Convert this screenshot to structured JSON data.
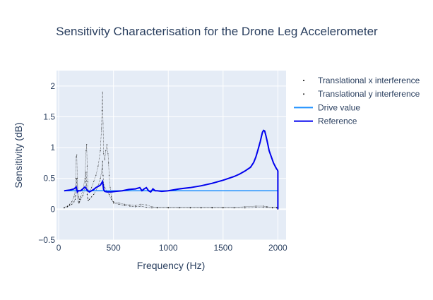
{
  "colors": {
    "background": "#ffffff",
    "plot_background": "#e5ecf6",
    "grid": "#ffffff",
    "text": "#2a3f5f",
    "x_interference": "#000000",
    "y_interference": "#1f1f1f",
    "drive_value": "#1e90ff",
    "reference": "#0000ee"
  },
  "chart_data": {
    "type": "line",
    "title": "Sensitivity Characterisation for the Drone Leg Accelerometer",
    "xlabel": "Frequency (Hz)",
    "ylabel": "Sensitivity (dB)",
    "xlim": [
      -20,
      2075
    ],
    "ylim": [
      -0.5,
      2.25
    ],
    "xticks": [
      0,
      500,
      1000,
      1500,
      2000
    ],
    "xtick_labels": [
      "0",
      "500",
      "1000",
      "1500",
      "2000"
    ],
    "yticks": [
      -0.5,
      0,
      0.5,
      1,
      1.5,
      2
    ],
    "ytick_labels": [
      "−0.5",
      "0",
      "0.5",
      "1",
      "1.5",
      "2"
    ],
    "grid": true,
    "legend_position": "top-right, outside plot",
    "series": [
      {
        "name": "Translational x interference",
        "style": "dotted markers",
        "color_key": "x_interference",
        "x": [
          50,
          80,
          100,
          120,
          140,
          150,
          155,
          160,
          165,
          170,
          175,
          180,
          185,
          190,
          200,
          220,
          235,
          245,
          250,
          255,
          260,
          265,
          270,
          280,
          300,
          320,
          340,
          360,
          380,
          395,
          400,
          405,
          410,
          420,
          440,
          460,
          480,
          500,
          550,
          600,
          650,
          700,
          750,
          800,
          850,
          900,
          1000,
          1100,
          1200,
          1300,
          1400,
          1500,
          1600,
          1700,
          1800,
          1870,
          1900,
          1950,
          1990,
          2000
        ],
        "y": [
          0.02,
          0.04,
          0.06,
          0.08,
          0.12,
          0.16,
          0.22,
          0.36,
          0.5,
          0.3,
          0.18,
          0.12,
          0.1,
          0.12,
          0.16,
          0.22,
          0.3,
          0.45,
          0.6,
          0.38,
          0.24,
          0.18,
          0.14,
          0.16,
          0.2,
          0.24,
          0.3,
          0.38,
          0.5,
          0.65,
          0.78,
          0.55,
          0.4,
          0.35,
          0.3,
          0.24,
          0.16,
          0.1,
          0.08,
          0.06,
          0.05,
          0.04,
          0.05,
          0.03,
          0.02,
          0.02,
          0.02,
          0.02,
          0.02,
          0.02,
          0.02,
          0.02,
          0.02,
          0.02,
          0.03,
          0.03,
          0.03,
          0.02,
          0.02,
          0.0
        ]
      },
      {
        "name": "Translational y interference",
        "style": "dotted markers",
        "color_key": "y_interference",
        "x": [
          50,
          80,
          100,
          120,
          140,
          150,
          155,
          160,
          165,
          170,
          175,
          180,
          190,
          200,
          220,
          240,
          250,
          255,
          260,
          265,
          270,
          280,
          300,
          320,
          340,
          360,
          380,
          390,
          395,
          400,
          405,
          410,
          420,
          430,
          440,
          450,
          455,
          460,
          470,
          480,
          500,
          550,
          600,
          650,
          700,
          750,
          800,
          850,
          900,
          1000,
          1100,
          1200,
          1300,
          1400,
          1500,
          1600,
          1700,
          1800,
          1870,
          1900,
          1950,
          1990,
          2000
        ],
        "y": [
          0.03,
          0.05,
          0.08,
          0.12,
          0.2,
          0.3,
          0.5,
          0.85,
          0.88,
          0.5,
          0.3,
          0.2,
          0.16,
          0.2,
          0.3,
          0.5,
          0.95,
          1.05,
          0.7,
          0.45,
          0.3,
          0.28,
          0.35,
          0.45,
          0.55,
          0.7,
          0.95,
          1.3,
          1.6,
          1.9,
          1.4,
          0.9,
          0.8,
          0.95,
          1.05,
          0.9,
          0.75,
          0.55,
          0.35,
          0.2,
          0.12,
          0.1,
          0.08,
          0.07,
          0.06,
          0.08,
          0.07,
          0.04,
          0.03,
          0.03,
          0.03,
          0.03,
          0.03,
          0.03,
          0.03,
          0.03,
          0.04,
          0.05,
          0.05,
          0.04,
          0.03,
          0.03,
          0.0
        ]
      },
      {
        "name": "Drive value",
        "style": "line",
        "color_key": "drive_value",
        "x": [
          50,
          2000
        ],
        "y": [
          0.3,
          0.3
        ]
      },
      {
        "name": "Reference",
        "style": "line",
        "color_key": "reference",
        "x": [
          50,
          100,
          140,
          160,
          170,
          180,
          200,
          220,
          240,
          260,
          280,
          300,
          320,
          340,
          360,
          380,
          400,
          410,
          420,
          440,
          480,
          520,
          580,
          640,
          700,
          740,
          760,
          780,
          800,
          820,
          840,
          860,
          880,
          900,
          940,
          1000,
          1100,
          1200,
          1300,
          1400,
          1500,
          1600,
          1650,
          1700,
          1750,
          1780,
          1800,
          1820,
          1840,
          1850,
          1860,
          1870,
          1880,
          1890,
          1900,
          1910,
          1920,
          1940,
          1960,
          1980,
          1990,
          1995,
          2000,
          2000
        ],
        "y": [
          0.3,
          0.31,
          0.33,
          0.36,
          0.28,
          0.3,
          0.3,
          0.33,
          0.36,
          0.31,
          0.28,
          0.3,
          0.32,
          0.35,
          0.37,
          0.39,
          0.45,
          0.32,
          0.29,
          0.28,
          0.28,
          0.29,
          0.3,
          0.32,
          0.33,
          0.35,
          0.3,
          0.33,
          0.35,
          0.3,
          0.28,
          0.33,
          0.3,
          0.3,
          0.29,
          0.3,
          0.33,
          0.35,
          0.38,
          0.42,
          0.47,
          0.53,
          0.57,
          0.62,
          0.68,
          0.76,
          0.85,
          0.97,
          1.1,
          1.18,
          1.25,
          1.28,
          1.27,
          1.2,
          1.12,
          1.04,
          0.95,
          0.85,
          0.75,
          0.68,
          0.65,
          0.64,
          0.62,
          0.0
        ]
      }
    ]
  }
}
